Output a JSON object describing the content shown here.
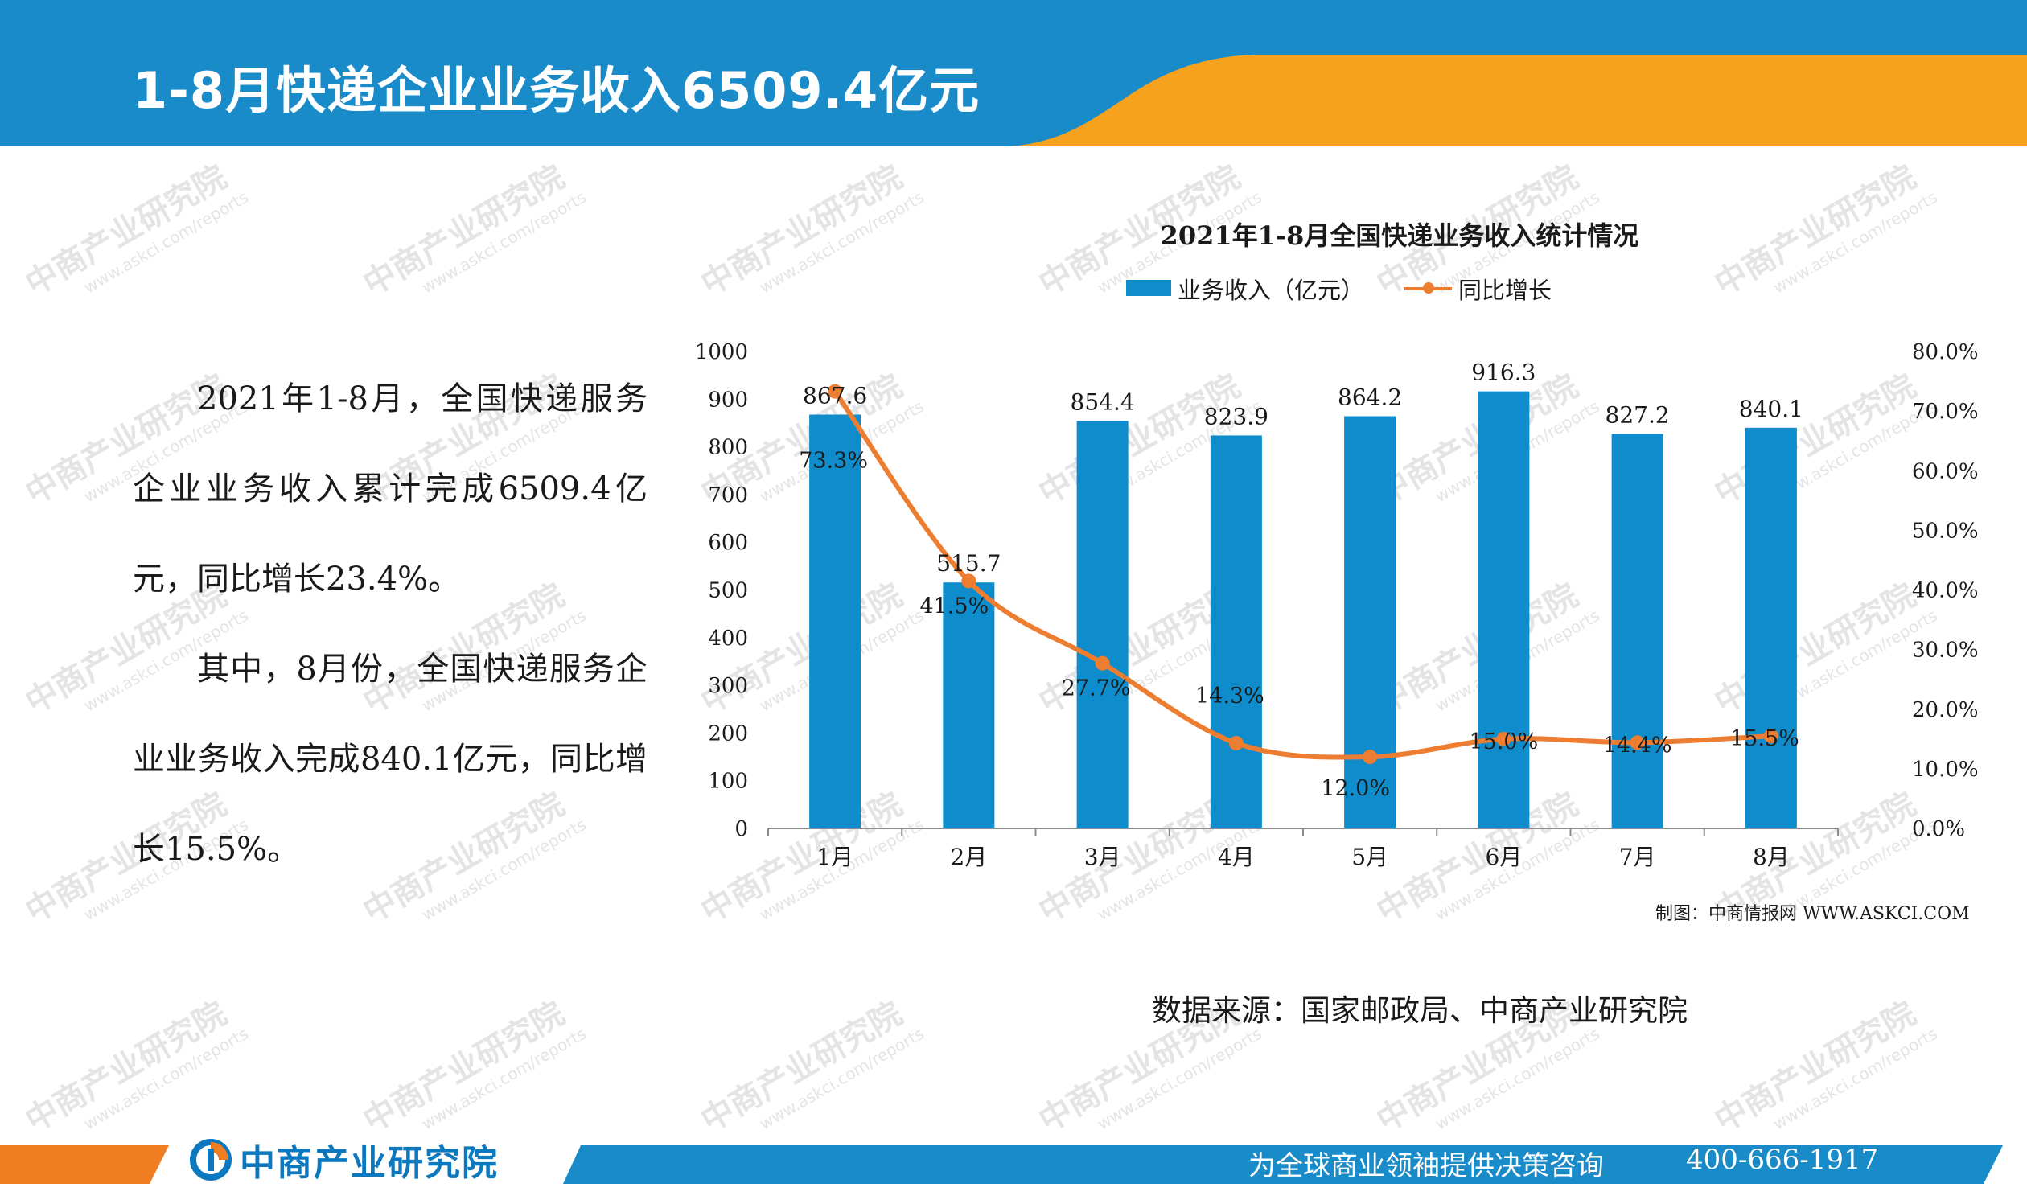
{
  "header": {
    "title": "1-8月快递企业业务收入6509.4亿元"
  },
  "body": {
    "paragraph1": "2021年1-8月，全国快递服务企业业务收入累计完成6509.4亿元，同比增长23.4%。",
    "paragraph2": "其中，8月份，全国快递服务企业业务收入完成840.1亿元，同比增长15.5%。"
  },
  "chart_data": {
    "type": "bar",
    "title": "2021年1-8月全国快递业务收入统计情况",
    "categories": [
      "1月",
      "2月",
      "3月",
      "4月",
      "5月",
      "6月",
      "7月",
      "8月"
    ],
    "series": [
      {
        "name": "业务收入（亿元）",
        "type": "bar",
        "axis": "left",
        "values": [
          867.6,
          515.7,
          854.4,
          823.9,
          864.2,
          916.3,
          827.2,
          840.1
        ],
        "labels": [
          "867.6",
          "515.7",
          "854.4",
          "823.9",
          "864.2",
          "916.3",
          "827.2",
          "840.1"
        ]
      },
      {
        "name": "同比增长",
        "type": "line",
        "axis": "right",
        "values": [
          73.3,
          41.5,
          27.7,
          14.3,
          12.0,
          15.0,
          14.4,
          15.5
        ],
        "labels": [
          "73.3%",
          "41.5%",
          "27.7%",
          "14.3%",
          "12.0%",
          "15.0%",
          "14.4%",
          "15.5%"
        ]
      }
    ],
    "ylim": [
      0,
      1000
    ],
    "yticks": [
      "0",
      "100",
      "200",
      "300",
      "400",
      "500",
      "600",
      "700",
      "800",
      "900",
      "1000"
    ],
    "y2lim": [
      0,
      80
    ],
    "y2ticks": [
      "0.0%",
      "10.0%",
      "20.0%",
      "30.0%",
      "40.0%",
      "50.0%",
      "60.0%",
      "70.0%",
      "80.0%"
    ],
    "xlabel": "",
    "ylabel": "",
    "legend": "top",
    "colors": {
      "bar": "#0e8ccb",
      "line": "#ed7d31"
    }
  },
  "chart_credit": "制图：中商情报网 WWW.ASKCI.COM",
  "source": "数据来源：国家邮政局、中商产业研究院",
  "footer": {
    "logo_text": "中商产业研究院",
    "slogan": "为全球商业领袖提供决策咨询",
    "phone": "400-666-1917"
  },
  "watermark": {
    "text": "中商产业研究院",
    "url": "www.askci.com/reports"
  },
  "colors": {
    "header_blue": "#1a8bc9",
    "header_orange": "#f6a21e",
    "footer_blue": "#1a8bc9",
    "footer_orange": "#ef7d22"
  }
}
